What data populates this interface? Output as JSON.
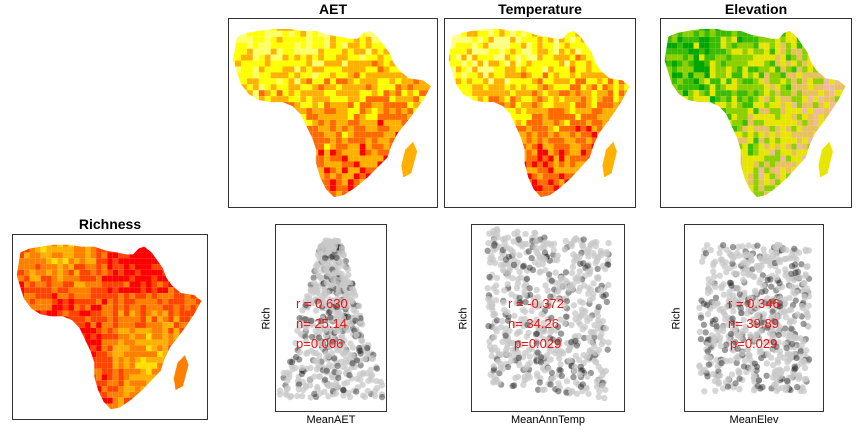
{
  "chart_data": [
    {
      "type": "heatmap",
      "title": "AET",
      "palette": [
        "#ff0000",
        "#ff6a00",
        "#ffb000",
        "#ffff00",
        "#ffff66"
      ],
      "note": "map of Africa coloured by AET"
    },
    {
      "type": "heatmap",
      "title": "Temperature",
      "palette": [
        "#ff0000",
        "#ff6a00",
        "#ffb000",
        "#ffff00",
        "#ffff80"
      ],
      "note": "map of Africa coloured by temperature"
    },
    {
      "type": "heatmap",
      "title": "Elevation",
      "palette": [
        "#00a600",
        "#3cbc00",
        "#8cd000",
        "#e6e600",
        "#e8c060",
        "#eeb99f"
      ],
      "note": "map of Africa coloured by elevation"
    },
    {
      "type": "heatmap",
      "title": "Richness",
      "palette": [
        "#ff0000",
        "#ff4400",
        "#ff8000",
        "#ffb000",
        "#ffe000"
      ],
      "note": "map of Africa coloured by richness"
    },
    {
      "type": "scatter",
      "xlabel": "MeanAET",
      "ylabel": "Rich",
      "annotation": [
        "r = 0.630",
        "n= 25.14",
        "p=0.006"
      ],
      "shape": "triangle"
    },
    {
      "type": "scatter",
      "xlabel": "MeanAnnTemp",
      "ylabel": "Rich",
      "annotation": [
        "r = -0.372",
        "n= 34.26",
        "p=0.029"
      ],
      "shape": "broad"
    },
    {
      "type": "scatter",
      "xlabel": "MeanElev",
      "ylabel": "Rich",
      "annotation": [
        "r = 0.346",
        "n= 39.89",
        "p=0.029"
      ],
      "shape": "cloud"
    }
  ],
  "colors": {
    "annotation": "#ee1111",
    "point_light": "#c8c8c8",
    "point_dark": "#222222",
    "frame": "#333333"
  }
}
